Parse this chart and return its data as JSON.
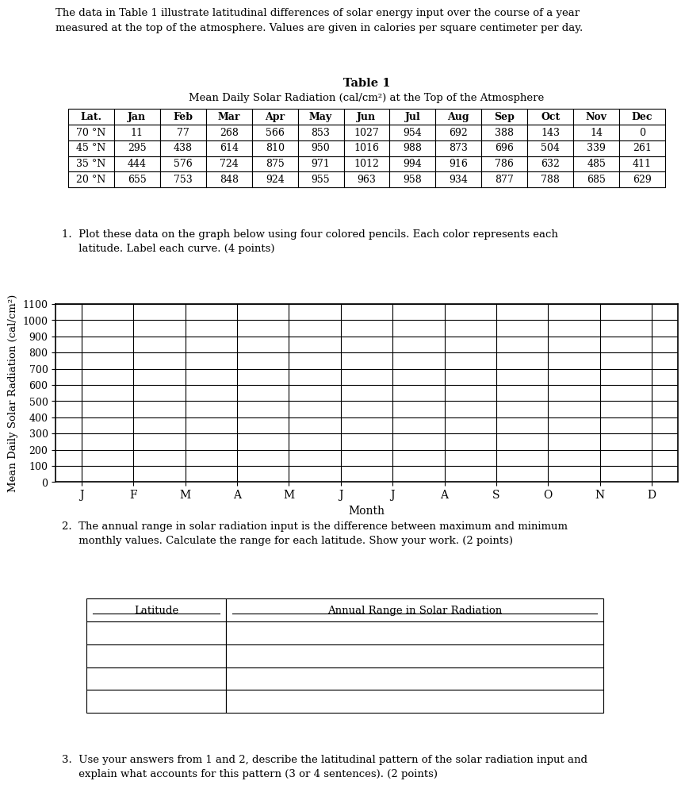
{
  "intro_text": "The data in Table 1 illustrate latitudinal differences of solar energy input over the course of a year\nmeasured at the top of the atmosphere. Values are given in calories per square centimeter per day.",
  "table1_title": "Table 1",
  "table1_subtitle": "Mean Daily Solar Radiation (cal/cm²) at the Top of the Atmosphere",
  "table1_headers": [
    "Lat.",
    "Jan",
    "Feb",
    "Mar",
    "Apr",
    "May",
    "Jun",
    "Jul",
    "Aug",
    "Sep",
    "Oct",
    "Nov",
    "Dec"
  ],
  "table1_data": [
    [
      "70 °N",
      "11",
      "77",
      "268",
      "566",
      "853",
      "1027",
      "954",
      "692",
      "388",
      "143",
      "14",
      "0"
    ],
    [
      "45 °N",
      "295",
      "438",
      "614",
      "810",
      "950",
      "1016",
      "988",
      "873",
      "696",
      "504",
      "339",
      "261"
    ],
    [
      "35 °N",
      "444",
      "576",
      "724",
      "875",
      "971",
      "1012",
      "994",
      "916",
      "786",
      "632",
      "485",
      "411"
    ],
    [
      "20 °N",
      "655",
      "753",
      "848",
      "924",
      "955",
      "963",
      "958",
      "934",
      "877",
      "788",
      "685",
      "629"
    ]
  ],
  "question1_text": "1.  Plot these data on the graph below using four colored pencils. Each color represents each\n     latitude. Label each curve. (4 points)",
  "graph_xlabel": "Month",
  "graph_ylabel": "Mean Daily Solar Radiation (cal/cm²)",
  "graph_xticks": [
    "J",
    "F",
    "M",
    "A",
    "M",
    "J",
    "J",
    "A",
    "S",
    "O",
    "N",
    "D"
  ],
  "graph_yticks": [
    0,
    100,
    200,
    300,
    400,
    500,
    600,
    700,
    800,
    900,
    1000,
    1100
  ],
  "question2_text": "2.  The annual range in solar radiation input is the difference between maximum and minimum\n     monthly values. Calculate the range for each latitude. Show your work. (2 points)",
  "table2_headers": [
    "Latitude",
    "Annual Range in Solar Radiation"
  ],
  "table2_rows": 4,
  "question3_text": "3.  Use your answers from 1 and 2, describe the latitudinal pattern of the solar radiation input and\n     explain what accounts for this pattern (3 or 4 sentences). (2 points)",
  "background_color": "#ffffff",
  "text_color": "#000000"
}
